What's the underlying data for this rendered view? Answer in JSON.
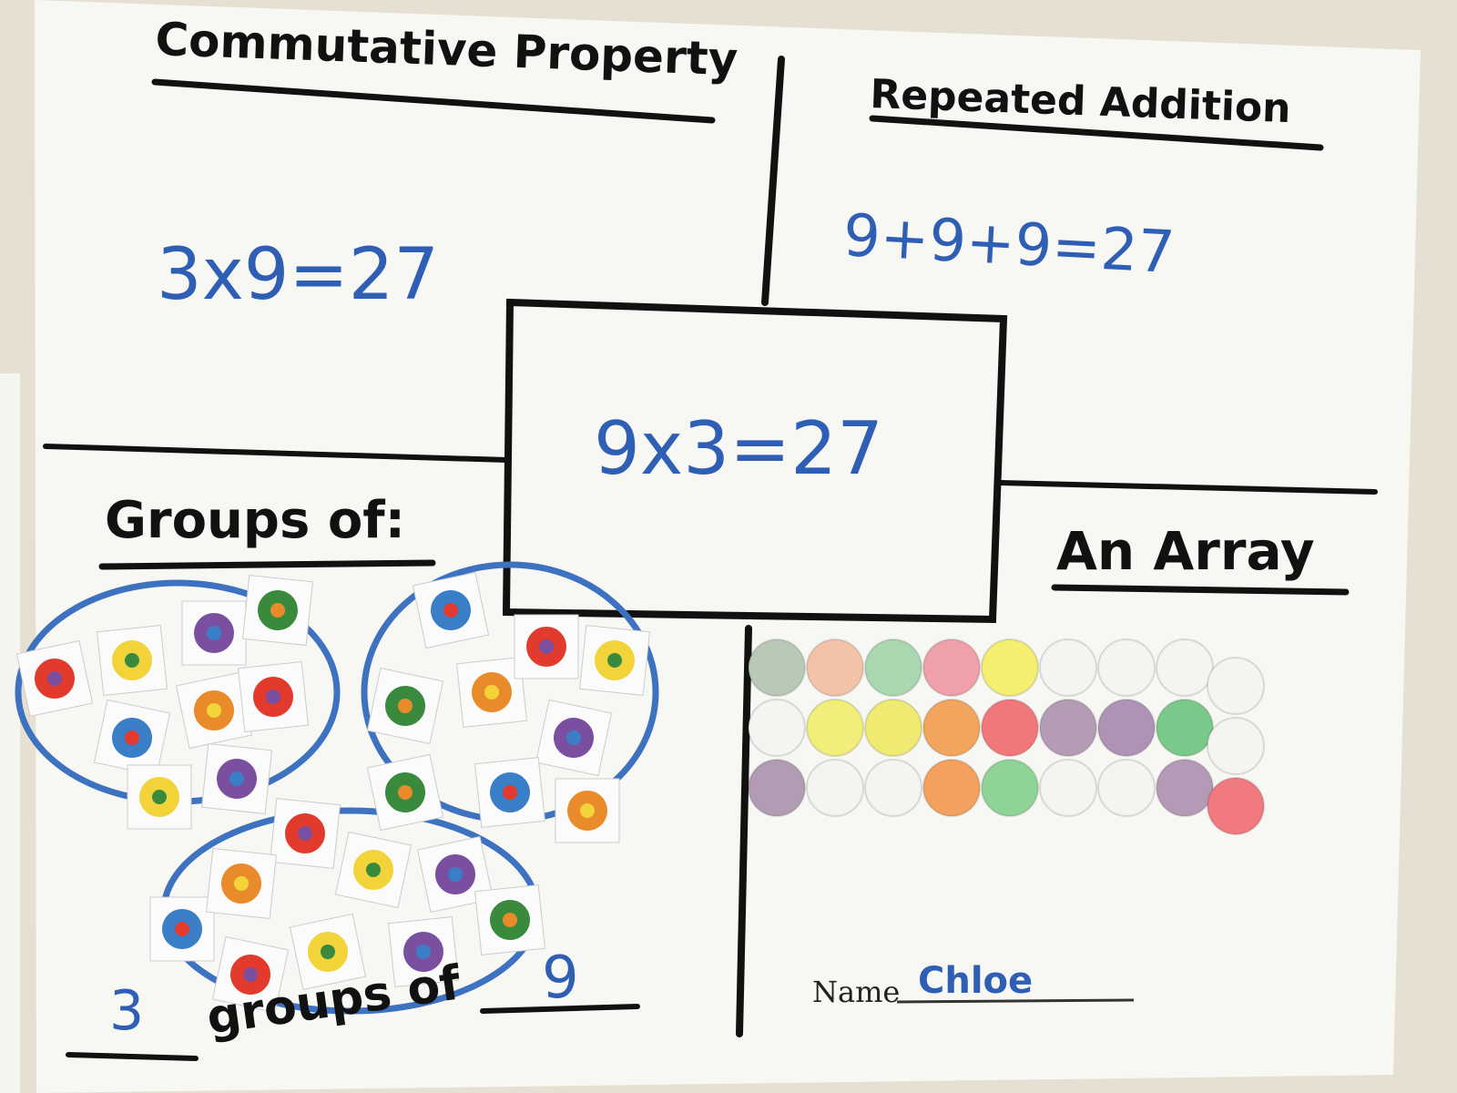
{
  "sections": {
    "commutative": {
      "title": "Commutative Property",
      "equation": "3x9=27"
    },
    "repeated_addition": {
      "title": "Repeated Addition",
      "equation": "9+9+9=27"
    },
    "center": {
      "equation": "9x3=27"
    },
    "groups": {
      "title": "Groups of:",
      "count": "3",
      "connector": "groups of",
      "size": "9"
    },
    "array": {
      "title": "An Array"
    },
    "name": {
      "label": "Name",
      "value": "Chloe"
    }
  }
}
